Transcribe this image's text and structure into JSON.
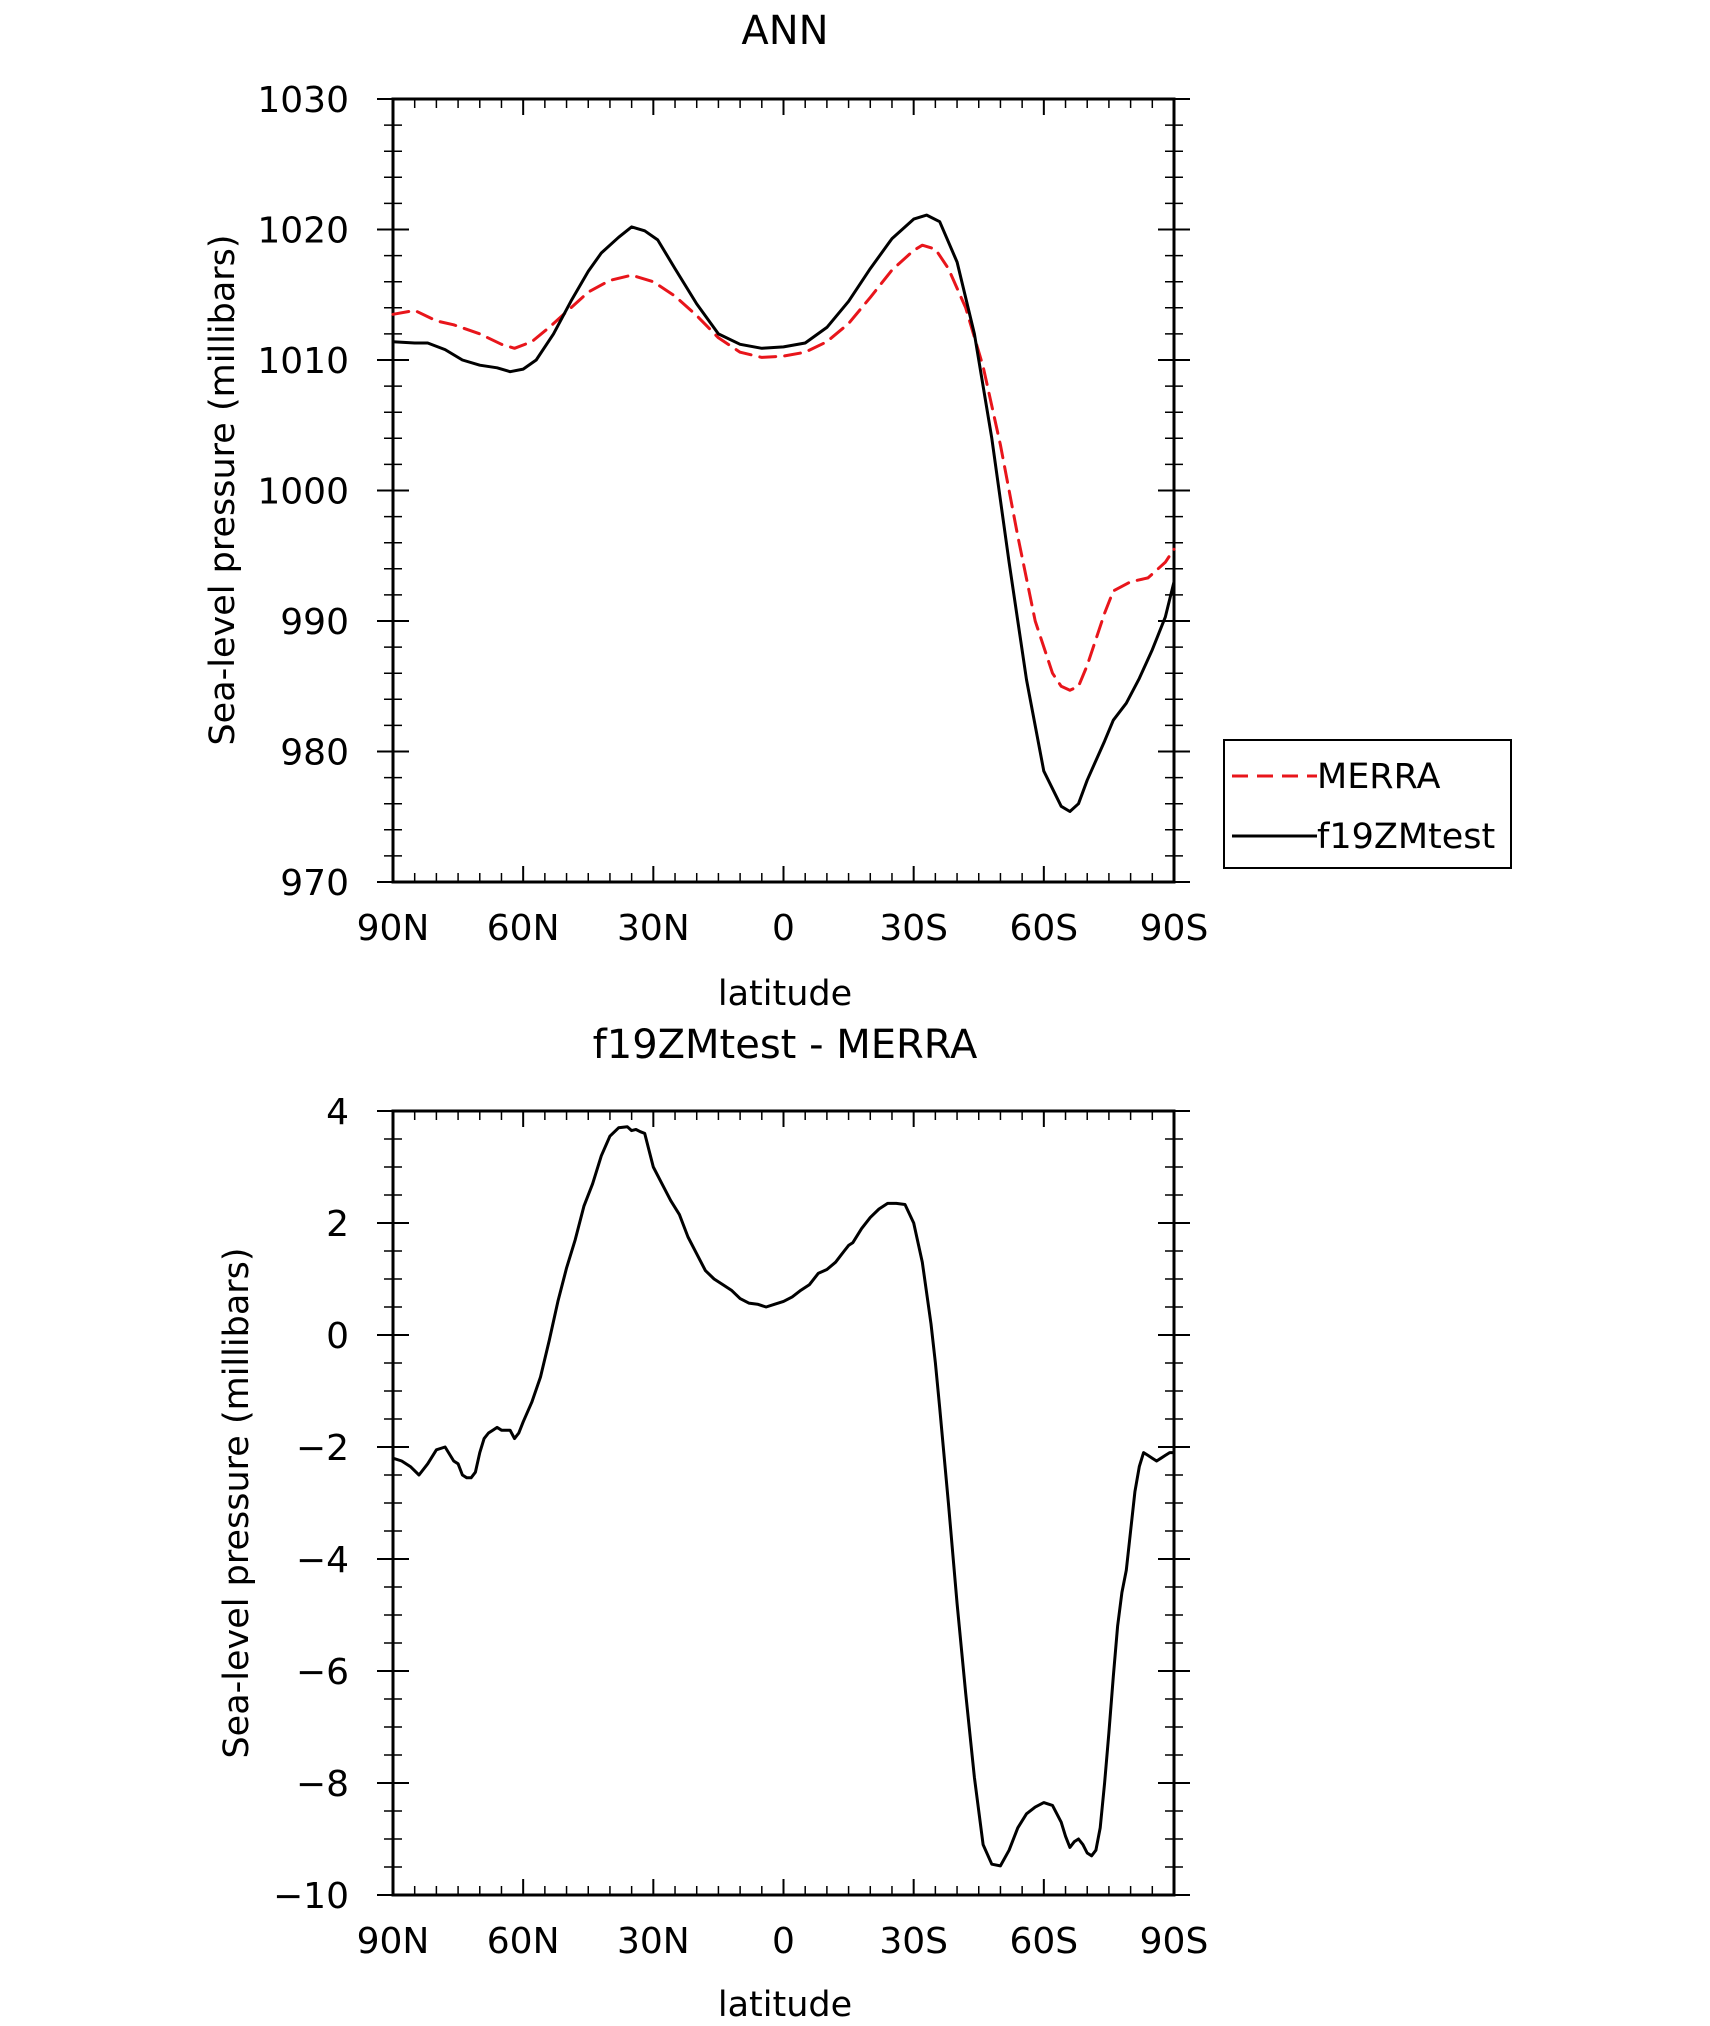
{
  "chart_data": [
    {
      "type": "line",
      "title": "ANN",
      "xlabel": "latitude",
      "ylabel": "Sea-level pressure (millibars)",
      "xlim": [
        90,
        -90
      ],
      "ylim": [
        970,
        1030
      ],
      "x_ticks": [
        {
          "value": 90,
          "label": "90N"
        },
        {
          "value": 60,
          "label": "60N"
        },
        {
          "value": 30,
          "label": "30N"
        },
        {
          "value": 0,
          "label": "0"
        },
        {
          "value": -30,
          "label": "30S"
        },
        {
          "value": -60,
          "label": "60S"
        },
        {
          "value": -90,
          "label": "90S"
        }
      ],
      "y_ticks": [
        {
          "value": 1030,
          "label": "1030"
        },
        {
          "value": 1020,
          "label": "1020"
        },
        {
          "value": 1010,
          "label": "1010"
        },
        {
          "value": 1000,
          "label": "1000"
        },
        {
          "value": 990,
          "label": "990"
        },
        {
          "value": 980,
          "label": "980"
        },
        {
          "value": 970,
          "label": "970"
        }
      ],
      "grid": false,
      "legend_position": "right",
      "series": [
        {
          "name": "MERRA",
          "color": "#e8151b",
          "dash": "dashed",
          "x": [
            90,
            85,
            80,
            76,
            70,
            65,
            62,
            58,
            54,
            50,
            45,
            40,
            35,
            30,
            25,
            20,
            15,
            10,
            5,
            0,
            -5,
            -10,
            -15,
            -20,
            -25,
            -30,
            -32,
            -35,
            -38,
            -42,
            -46,
            -50,
            -54,
            -58,
            -62,
            -64,
            -66,
            -68,
            -70,
            -72,
            -74,
            -76,
            -80,
            -84,
            -88,
            -90
          ],
          "y": [
            1013.5,
            1013.8,
            1013.0,
            1012.7,
            1012.0,
            1011.2,
            1010.9,
            1011.4,
            1012.5,
            1013.7,
            1015.2,
            1016.1,
            1016.5,
            1016.0,
            1014.9,
            1013.4,
            1011.7,
            1010.6,
            1010.2,
            1010.3,
            1010.6,
            1011.4,
            1012.8,
            1014.8,
            1016.9,
            1018.4,
            1018.8,
            1018.5,
            1017.0,
            1014.0,
            1009.5,
            1003.5,
            996.5,
            990.0,
            986.0,
            985.0,
            984.7,
            985.0,
            986.6,
            988.6,
            990.6,
            992.3,
            993.0,
            993.3,
            994.5,
            995.5
          ]
        },
        {
          "name": "f19ZMtest",
          "color": "#000000",
          "dash": "solid",
          "x": [
            90,
            85,
            82,
            78,
            74,
            70,
            66,
            63,
            60,
            57,
            53,
            49,
            45,
            42,
            38,
            35,
            32,
            29,
            25,
            20,
            15,
            10,
            5,
            0,
            -5,
            -10,
            -15,
            -20,
            -25,
            -30,
            -33,
            -36,
            -40,
            -44,
            -48,
            -52,
            -56,
            -60,
            -64,
            -66,
            -68,
            -70,
            -72,
            -74,
            -76,
            -79,
            -82,
            -85,
            -88,
            -90
          ],
          "y": [
            1011.4,
            1011.3,
            1011.3,
            1010.8,
            1010.0,
            1009.6,
            1009.4,
            1009.1,
            1009.3,
            1010.0,
            1012.0,
            1014.5,
            1016.8,
            1018.2,
            1019.4,
            1020.2,
            1019.9,
            1019.2,
            1017.0,
            1014.3,
            1012.0,
            1011.2,
            1010.9,
            1011.0,
            1011.3,
            1012.5,
            1014.5,
            1017.0,
            1019.3,
            1020.8,
            1021.1,
            1020.6,
            1017.5,
            1012.0,
            1004.0,
            994.5,
            985.5,
            978.5,
            975.8,
            975.4,
            976.0,
            977.8,
            979.3,
            980.8,
            982.4,
            983.7,
            985.6,
            987.8,
            990.3,
            993.0
          ]
        }
      ]
    },
    {
      "type": "line",
      "title": "f19ZMtest - MERRA",
      "xlabel": "latitude",
      "ylabel": "Sea-level pressure (millibars)",
      "xlim": [
        90,
        -90
      ],
      "ylim": [
        -10,
        4
      ],
      "x_ticks": [
        {
          "value": 90,
          "label": "90N"
        },
        {
          "value": 60,
          "label": "60N"
        },
        {
          "value": 30,
          "label": "30N"
        },
        {
          "value": 0,
          "label": "0"
        },
        {
          "value": -30,
          "label": "30S"
        },
        {
          "value": -60,
          "label": "60S"
        },
        {
          "value": -90,
          "label": "90S"
        }
      ],
      "y_ticks": [
        {
          "value": 4,
          "label": "4"
        },
        {
          "value": 2,
          "label": "2"
        },
        {
          "value": 0,
          "label": "0"
        },
        {
          "value": -2,
          "label": "−2"
        },
        {
          "value": -4,
          "label": "−4"
        },
        {
          "value": -6,
          "label": "−6"
        },
        {
          "value": -8,
          "label": "−8"
        },
        {
          "value": -10,
          "label": "−10"
        }
      ],
      "grid": false,
      "series": [
        {
          "color": "#000000",
          "dash": "solid",
          "x": [
            90,
            88,
            86,
            84,
            82,
            80,
            78,
            76,
            75,
            74,
            73,
            72,
            71,
            70,
            69,
            68,
            67,
            66,
            65,
            63,
            62,
            61,
            60,
            58,
            56,
            54,
            52,
            50,
            48,
            46,
            44,
            42,
            40,
            38,
            36,
            35,
            34,
            33,
            32,
            31,
            30,
            28,
            26,
            24,
            22,
            20,
            18,
            16,
            14,
            12,
            10,
            8,
            6,
            4,
            2,
            0,
            -2,
            -4,
            -6,
            -8,
            -10,
            -12,
            -13,
            -14,
            -15,
            -16,
            -18,
            -20,
            -22,
            -24,
            -26,
            -28,
            -30,
            -32,
            -34,
            -35,
            -36,
            -38,
            -40,
            -42,
            -44,
            -46,
            -48,
            -50,
            -52,
            -54,
            -56,
            -58,
            -60,
            -62,
            -64,
            -65,
            -66,
            -67,
            -68,
            -69,
            -70,
            -71,
            -72,
            -73,
            -74,
            -75,
            -76,
            -77,
            -78,
            -79,
            -80,
            -81,
            -82,
            -83,
            -84,
            -85,
            -86,
            -87,
            -88,
            -89,
            -90
          ],
          "y": [
            -2.2,
            -2.25,
            -2.35,
            -2.5,
            -2.3,
            -2.05,
            -2.0,
            -2.25,
            -2.3,
            -2.5,
            -2.55,
            -2.55,
            -2.45,
            -2.1,
            -1.85,
            -1.75,
            -1.7,
            -1.65,
            -1.7,
            -1.7,
            -1.85,
            -1.75,
            -1.55,
            -1.2,
            -0.75,
            -0.1,
            0.6,
            1.2,
            1.7,
            2.3,
            2.7,
            3.2,
            3.55,
            3.7,
            3.72,
            3.65,
            3.67,
            3.63,
            3.6,
            3.3,
            3.0,
            2.7,
            2.4,
            2.15,
            1.75,
            1.45,
            1.15,
            1.0,
            0.9,
            0.8,
            0.65,
            0.57,
            0.55,
            0.5,
            0.55,
            0.6,
            0.68,
            0.8,
            0.9,
            1.1,
            1.17,
            1.3,
            1.4,
            1.5,
            1.6,
            1.65,
            1.9,
            2.1,
            2.25,
            2.35,
            2.35,
            2.33,
            2.0,
            1.3,
            0.2,
            -0.5,
            -1.3,
            -3.0,
            -4.8,
            -6.4,
            -7.9,
            -9.1,
            -9.45,
            -9.48,
            -9.2,
            -8.8,
            -8.55,
            -8.43,
            -8.35,
            -8.4,
            -8.7,
            -8.95,
            -9.15,
            -9.05,
            -9.0,
            -9.1,
            -9.25,
            -9.3,
            -9.2,
            -8.8,
            -8.0,
            -7.1,
            -6.1,
            -5.2,
            -4.6,
            -4.2,
            -3.5,
            -2.8,
            -2.35,
            -2.1,
            -2.15,
            -2.2,
            -2.25,
            -2.2,
            -2.15,
            -2.1,
            -2.1
          ]
        }
      ]
    }
  ]
}
